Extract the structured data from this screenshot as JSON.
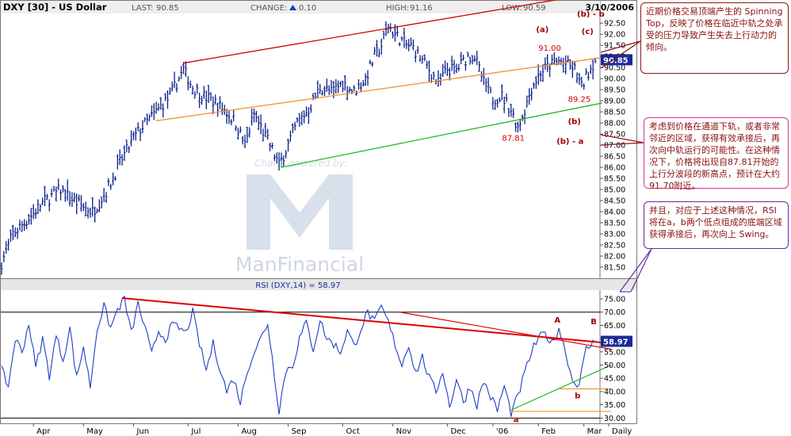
{
  "chart_data": [
    {
      "type": "bar",
      "title": "DXY [30] - US Dollar",
      "date_label": "3/10/2006",
      "stats": {
        "last_label": "LAST:",
        "last": "90.85",
        "change_label": "CHANGE:",
        "change": "0.10",
        "high_label": "HIGH:",
        "high": "91.16",
        "low_label": "LOW:",
        "low": "90.59"
      },
      "ylim": [
        81.0,
        92.9
      ],
      "y_ticks": [
        "81.50",
        "82.00",
        "82.50",
        "83.00",
        "83.50",
        "84.00",
        "84.50",
        "85.00",
        "85.50",
        "86.00",
        "86.50",
        "87.00",
        "87.50",
        "88.00",
        "88.50",
        "89.00",
        "89.50",
        "90.00",
        "90.50",
        "91.00",
        "91.50",
        "92.00",
        "92.50"
      ],
      "last_value_label": "90.85",
      "x_ticks": [
        "Apr",
        "May",
        "Jun",
        "Jul",
        "Aug",
        "Sep",
        "Oct",
        "Nov",
        "Dec",
        "'06",
        "Feb",
        "Mar",
        "Daily"
      ],
      "price_path": [
        [
          0,
          81.7
        ],
        [
          5,
          83.0
        ],
        [
          12,
          83.7
        ],
        [
          18,
          84.4
        ],
        [
          26,
          85.0
        ],
        [
          33,
          84.4
        ],
        [
          40,
          84.0
        ],
        [
          46,
          84.9
        ],
        [
          53,
          86.4
        ],
        [
          60,
          87.6
        ],
        [
          67,
          88.4
        ],
        [
          74,
          89.2
        ],
        [
          78,
          90.0
        ],
        [
          80,
          90.4
        ],
        [
          84,
          89.6
        ],
        [
          89,
          89.2
        ],
        [
          93,
          89.0
        ],
        [
          98,
          88.6
        ],
        [
          103,
          88.0
        ],
        [
          107,
          87.0
        ],
        [
          111,
          88.4
        ],
        [
          115,
          87.6
        ],
        [
          119,
          86.8
        ],
        [
          122,
          86.1
        ],
        [
          125,
          86.8
        ],
        [
          130,
          88.0
        ],
        [
          135,
          88.6
        ],
        [
          140,
          89.6
        ],
        [
          145,
          89.4
        ],
        [
          150,
          89.8
        ],
        [
          155,
          89.4
        ],
        [
          160,
          90.0
        ],
        [
          164,
          91.0
        ],
        [
          167,
          91.5
        ],
        [
          170,
          92.4
        ],
        [
          173,
          92.0
        ],
        [
          177,
          91.6
        ],
        [
          181,
          91.4
        ],
        [
          185,
          90.8
        ],
        [
          188,
          90.4
        ],
        [
          192,
          89.8
        ],
        [
          196,
          90.4
        ],
        [
          200,
          90.4
        ],
        [
          205,
          91.0
        ],
        [
          208,
          91.0
        ],
        [
          212,
          89.8
        ],
        [
          216,
          89.1
        ],
        [
          220,
          89.2
        ],
        [
          224,
          88.6
        ],
        [
          227,
          87.81
        ],
        [
          230,
          88.6
        ],
        [
          233,
          89.6
        ],
        [
          237,
          90.3
        ],
        [
          241,
          90.6
        ],
        [
          245,
          90.8
        ],
        [
          249,
          90.6
        ],
        [
          252,
          90.4
        ],
        [
          255,
          89.6
        ],
        [
          258,
          90.3
        ],
        [
          261,
          90.85
        ]
      ],
      "channel_lines": [
        {
          "name": "upper",
          "color": "#cc0000",
          "x": [
            80,
            264
          ],
          "y": [
            90.7,
            93.9
          ]
        },
        {
          "name": "middle",
          "color": "#f09030",
          "x": [
            68,
            264
          ],
          "y": [
            88.1,
            90.95
          ]
        },
        {
          "name": "lower",
          "color": "#22bb22",
          "x": [
            123,
            264
          ],
          "y": [
            86.0,
            88.9
          ]
        }
      ],
      "annotations": [
        {
          "text": "(a)",
          "x": 235,
          "y": 92.1,
          "color": "#a00000",
          "bold": true
        },
        {
          "text": "91.00",
          "x": 236,
          "y": 91.25,
          "color": "#cc0000",
          "bold": false
        },
        {
          "text": "(b) - b",
          "x": 253,
          "y": 92.8,
          "color": "#a00000",
          "bold": true
        },
        {
          "text": "(c)",
          "x": 255,
          "y": 92.0,
          "color": "#a00000",
          "bold": true
        },
        {
          "text": "89.25",
          "x": 249,
          "y": 88.95,
          "color": "#cc0000",
          "bold": false
        },
        {
          "text": "(b)",
          "x": 249,
          "y": 87.95,
          "color": "#a00000",
          "bold": true
        },
        {
          "text": "87.81",
          "x": 220,
          "y": 87.2,
          "color": "#cc0000",
          "bold": false
        },
        {
          "text": "(b) - a",
          "x": 244,
          "y": 87.05,
          "color": "#a00000",
          "bold": true
        }
      ],
      "watermark": [
        "Charts powered by:",
        "ManFinancial"
      ]
    },
    {
      "type": "line",
      "title": "RSI (DXY,14) = 58.97",
      "ylim": [
        28,
        78
      ],
      "y_ticks": [
        "30.00",
        "35.00",
        "40.00",
        "45.00",
        "50.00",
        "55.00",
        "60.00",
        "65.00",
        "70.00",
        "75.00"
      ],
      "reference_lines": [
        70,
        30
      ],
      "last_value_label": "58.97",
      "rsi_path": [
        [
          0,
          48
        ],
        [
          3,
          42
        ],
        [
          6,
          60
        ],
        [
          9,
          55
        ],
        [
          12,
          66
        ],
        [
          15,
          49
        ],
        [
          18,
          60
        ],
        [
          21,
          46
        ],
        [
          24,
          61
        ],
        [
          27,
          52
        ],
        [
          30,
          64
        ],
        [
          33,
          45
        ],
        [
          36,
          57
        ],
        [
          39,
          42
        ],
        [
          42,
          64
        ],
        [
          45,
          72
        ],
        [
          48,
          64
        ],
        [
          51,
          71
        ],
        [
          54,
          75
        ],
        [
          57,
          62
        ],
        [
          60,
          73
        ],
        [
          63,
          64
        ],
        [
          66,
          54
        ],
        [
          69,
          63
        ],
        [
          72,
          60
        ],
        [
          75,
          65
        ],
        [
          78,
          64
        ],
        [
          81,
          62
        ],
        [
          84,
          70
        ],
        [
          87,
          58
        ],
        [
          90,
          48
        ],
        [
          93,
          58
        ],
        [
          96,
          49
        ],
        [
          99,
          40
        ],
        [
          102,
          45
        ],
        [
          105,
          36
        ],
        [
          108,
          48
        ],
        [
          111,
          55
        ],
        [
          114,
          60
        ],
        [
          117,
          66
        ],
        [
          120,
          46
        ],
        [
          122,
          33
        ],
        [
          125,
          48
        ],
        [
          128,
          50
        ],
        [
          131,
          60
        ],
        [
          134,
          66
        ],
        [
          137,
          56
        ],
        [
          140,
          67
        ],
        [
          143,
          60
        ],
        [
          146,
          58
        ],
        [
          149,
          55
        ],
        [
          152,
          63
        ],
        [
          155,
          57
        ],
        [
          158,
          64
        ],
        [
          161,
          70
        ],
        [
          164,
          66
        ],
        [
          167,
          72
        ],
        [
          170,
          66
        ],
        [
          173,
          58
        ],
        [
          176,
          50
        ],
        [
          179,
          58
        ],
        [
          182,
          47
        ],
        [
          185,
          53
        ],
        [
          188,
          45
        ],
        [
          191,
          40
        ],
        [
          194,
          48
        ],
        [
          197,
          34
        ],
        [
          200,
          45
        ],
        [
          203,
          36
        ],
        [
          206,
          42
        ],
        [
          209,
          35
        ],
        [
          212,
          44
        ],
        [
          215,
          38
        ],
        [
          218,
          33
        ],
        [
          221,
          42
        ],
        [
          224,
          32
        ],
        [
          227,
          38
        ],
        [
          230,
          47
        ],
        [
          233,
          55
        ],
        [
          236,
          60
        ],
        [
          239,
          62
        ],
        [
          242,
          58
        ],
        [
          245,
          64
        ],
        [
          248,
          55
        ],
        [
          251,
          44
        ],
        [
          254,
          43
        ],
        [
          257,
          56
        ],
        [
          261,
          58.97
        ]
      ],
      "trend_lines": [
        {
          "name": "resistance",
          "color": "#dd0000",
          "x": [
            53,
            268
          ],
          "y": [
            75.3,
            58.2
          ]
        },
        {
          "name": "resistance-2",
          "color": "#dd0000",
          "x": [
            175,
            268
          ],
          "y": [
            70.0,
            56.0
          ]
        },
        {
          "name": "support",
          "color": "#22bb22",
          "x": [
            224,
            268
          ],
          "y": [
            33.0,
            50.0
          ]
        }
      ],
      "level_lines": [
        {
          "color": "#f09030",
          "x": [
            245,
            268
          ],
          "y": 41.0
        },
        {
          "color": "#f09030",
          "x": [
            224,
            268
          ],
          "y": 32.5
        }
      ],
      "annotations": [
        {
          "text": "A",
          "x": 243,
          "y": 66.0,
          "color": "#a00000"
        },
        {
          "text": "B",
          "x": 259,
          "y": 65.5,
          "color": "#a00000"
        },
        {
          "text": "b",
          "x": 252,
          "y": 37.5,
          "color": "#a00000"
        },
        {
          "text": "a",
          "x": 225,
          "y": 28.5,
          "color": "#a00000"
        }
      ]
    }
  ],
  "notes": [
    "近期价格交易顶端产生的 Spinning Top，反映了价格在临近中轨之处承受的压力导致产生失去上行动力的倾向。",
    "考虑到价格在通道下轨，或者非常邻近的区域，获得有效承接后，再次向中轨运行的可能性。在这种情况下，价格将出现自87.81开始的上行分波段的新高点，预计在大约91.70附近。",
    "并且，对应于上述这种情况，RSI将在a，b两个低点组成的底端区域获得承接后，再次向上 Swing。"
  ],
  "colors": {
    "price_bars": "#0a1f8a",
    "rsi_line": "#1e3ec8",
    "header_bg": "#eeeeee",
    "label_bg": "#1a2a9a",
    "note_border_1": "#8b1a1a",
    "note_border_2": "#e0309a",
    "note_border_3": "#6a2aa0"
  }
}
